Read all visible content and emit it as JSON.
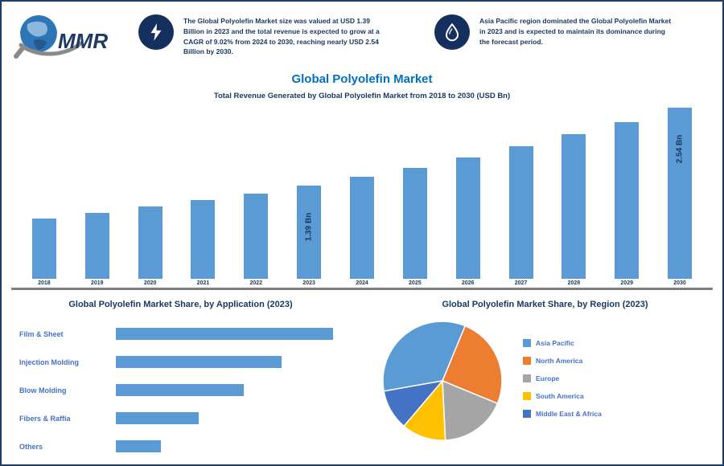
{
  "logo": {
    "text": "MMR"
  },
  "header": {
    "highlight1": "The Global Polyolefin Market size was valued at USD 1.39 Billion in 2023 and the total revenue is expected to grow at a CAGR of 9.02% from 2024 to 2030, reaching nearly USD 2.54 Billion by 2030.",
    "highlight2": "Asia Pacific region dominated the Global Polyolefin Market in 2023 and is expected to maintain its dominance during the forecast period."
  },
  "title": "Global Polyolefin Market",
  "subtitle": "Total Revenue Generated by Global Polyolefin Market from 2018 to 2030 (USD Bn)",
  "colors": {
    "bar": "#5B9BD5",
    "title": "#0070C0",
    "navy": "#17375E",
    "axis": "#7F7F7F",
    "label_blue": "#4472C4",
    "badge": "#152F5E",
    "border": "#1C3C6E"
  },
  "chart_data": [
    {
      "type": "bar",
      "title": "Total Revenue Generated by Global Polyolefin Market from 2018 to 2030 (USD Bn)",
      "categories": [
        "2018",
        "2019",
        "2020",
        "2021",
        "2022",
        "2023",
        "2024",
        "2025",
        "2026",
        "2027",
        "2028",
        "2029",
        "2030"
      ],
      "values": [
        0.9,
        0.98,
        1.07,
        1.17,
        1.27,
        1.39,
        1.52,
        1.65,
        1.8,
        1.97,
        2.14,
        2.33,
        2.54
      ],
      "bar_labels": [
        "",
        "",
        "",
        "",
        "",
        "1.39 Bn",
        "",
        "",
        "",
        "",
        "",
        "",
        "2.54 Bn"
      ],
      "unit": "USD Bn",
      "ylim": [
        0,
        2.54
      ],
      "grid": false
    },
    {
      "type": "bar",
      "orientation": "horizontal",
      "title": "Global Polyolefin Market Share, by Application (2023)",
      "categories": [
        "Film & Sheet",
        "Injection Molding",
        "Blow Molding",
        "Fibers & Raffia",
        "Others"
      ],
      "values": [
        34,
        26,
        20,
        13,
        7
      ],
      "unit": "%"
    },
    {
      "type": "pie",
      "title": "Global Polyolefin Market Share, by Region (2023)",
      "labels": [
        "Asia Pacific",
        "North America",
        "Europe",
        "South America",
        "Middle East & Africa"
      ],
      "values": [
        34,
        25,
        18,
        12,
        11
      ],
      "colors": [
        "#5B9BD5",
        "#ED7D31",
        "#A5A5A5",
        "#FFC000",
        "#4472C4"
      ],
      "start_angle": 260,
      "legend_position": "right",
      "unit": "%"
    }
  ]
}
